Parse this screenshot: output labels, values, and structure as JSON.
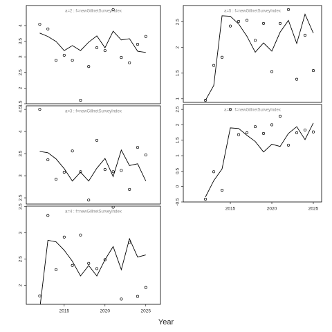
{
  "xlabel": "Year",
  "chart_data": [
    {
      "type": "line",
      "title": "a=2 : f=newGillnetSurveyIndex",
      "x": [
        2012,
        2013,
        2014,
        2015,
        2016,
        2017,
        2018,
        2019,
        2020,
        2021,
        2022,
        2023,
        2024,
        2025
      ],
      "xlim": [
        2010.35,
        2026.8
      ],
      "ylim": [
        1.5,
        4.64
      ],
      "yticks": [
        1.5,
        2.0,
        2.5,
        3.0,
        3.5,
        4.0
      ],
      "series": [
        {
          "style": "line",
          "color": "#000000",
          "values": [
            3.76,
            3.65,
            3.49,
            3.2,
            3.36,
            3.2,
            3.47,
            3.67,
            3.29,
            3.82,
            3.54,
            3.58,
            3.18,
            3.14
          ]
        },
        {
          "style": "points",
          "color": "#000000",
          "values": [
            4.04,
            3.89,
            2.89,
            3.05,
            2.89,
            1.61,
            2.69,
            3.29,
            3.2,
            4.51,
            2.98,
            2.81,
            3.4,
            3.65
          ]
        }
      ]
    },
    {
      "type": "line",
      "title": "a=3 : f=newGillnetSurveyIndex",
      "x": [
        2012,
        2013,
        2014,
        2015,
        2016,
        2017,
        2018,
        2019,
        2020,
        2021,
        2022,
        2023,
        2024,
        2025
      ],
      "xlim": [
        2010.35,
        2026.8
      ],
      "ylim": [
        2.36,
        4.58
      ],
      "yticks": [
        2.5,
        3.0,
        3.5,
        4.0,
        4.5
      ],
      "series": [
        {
          "style": "line",
          "color": "#000000",
          "values": [
            3.55,
            3.52,
            3.38,
            3.16,
            2.88,
            3.08,
            2.88,
            3.17,
            3.39,
            2.98,
            3.58,
            3.23,
            3.27,
            2.88
          ]
        },
        {
          "style": "points",
          "color": "#000000",
          "values": [
            4.5,
            3.36,
            2.92,
            3.08,
            3.56,
            3.09,
            2.45,
            3.8,
            3.14,
            3.09,
            3.12,
            2.69,
            3.64,
            3.47
          ]
        }
      ]
    },
    {
      "type": "line",
      "title": "a=4 : f=newGillnetSurveyIndex",
      "x": [
        2012,
        2013,
        2014,
        2015,
        2016,
        2017,
        2018,
        2019,
        2020,
        2021,
        2022,
        2023,
        2024,
        2025
      ],
      "xlim": [
        2010.35,
        2026.8
      ],
      "ylim": [
        1.64,
        3.51
      ],
      "yticks": [
        2.0,
        2.5,
        3.0,
        3.5
      ],
      "xticks": [
        2015,
        2020,
        2025
      ],
      "series": [
        {
          "style": "line",
          "color": "#000000",
          "values": [
            1.55,
            2.86,
            2.83,
            2.67,
            2.46,
            2.18,
            2.38,
            2.18,
            2.49,
            2.74,
            2.3,
            2.89,
            2.54,
            2.58
          ]
        },
        {
          "style": "points",
          "color": "#000000",
          "values": [
            1.8,
            3.33,
            2.3,
            2.92,
            2.38,
            2.96,
            2.42,
            2.32,
            2.49,
            3.49,
            1.74,
            2.82,
            1.79,
            1.96
          ]
        }
      ]
    },
    {
      "type": "line",
      "title": "a=5 : f=newGillnetSurveyIndex",
      "x": [
        2012,
        2013,
        2014,
        2015,
        2016,
        2017,
        2018,
        2019,
        2020,
        2021,
        2022,
        2023,
        2024,
        2025
      ],
      "xlim": [
        2009.33,
        2026
      ],
      "ylim": [
        0.93,
        2.82
      ],
      "yticks": [
        1.0,
        1.5,
        2.0,
        2.5
      ],
      "series": [
        {
          "style": "line",
          "color": "#000000",
          "values": [
            0.97,
            1.26,
            2.62,
            2.61,
            2.46,
            2.22,
            1.91,
            2.09,
            1.93,
            2.3,
            2.53,
            2.08,
            2.65,
            2.28
          ]
        },
        {
          "style": "points",
          "color": "#000000",
          "values": [
            0.97,
            1.65,
            1.81,
            2.42,
            2.51,
            2.53,
            2.14,
            2.47,
            1.53,
            2.47,
            2.74,
            1.38,
            2.24,
            1.55
          ]
        }
      ]
    },
    {
      "type": "line",
      "title": "a=6 : f=newGillnetSurveyIndex",
      "x": [
        2012,
        2013,
        2014,
        2015,
        2016,
        2017,
        2018,
        2019,
        2020,
        2021,
        2022,
        2023,
        2024,
        2025
      ],
      "xlim": [
        2009.33,
        2026
      ],
      "ylim": [
        -0.5,
        2.66
      ],
      "yticks": [
        -0.5,
        0.0,
        0.5,
        1.0,
        1.5,
        2.0,
        2.5
      ],
      "xticks": [
        2015,
        2020,
        2025
      ],
      "series": [
        {
          "style": "line",
          "color": "#000000",
          "values": [
            -0.34,
            0.19,
            0.57,
            1.9,
            1.88,
            1.66,
            1.46,
            1.12,
            1.37,
            1.3,
            1.72,
            1.94,
            1.52,
            2.06
          ]
        },
        {
          "style": "points",
          "color": "#000000",
          "values": [
            -0.41,
            0.48,
            -0.12,
            2.5,
            1.68,
            1.74,
            1.94,
            1.72,
            2.0,
            2.28,
            1.34,
            1.74,
            1.83,
            1.77
          ]
        }
      ]
    }
  ]
}
